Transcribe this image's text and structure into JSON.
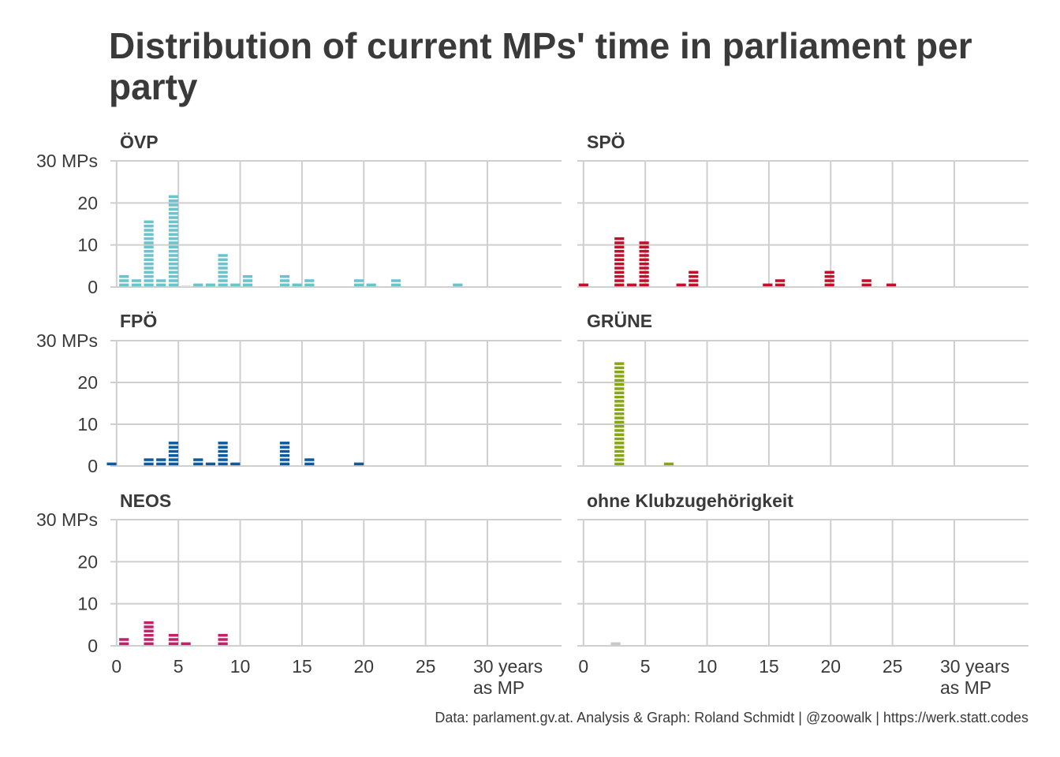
{
  "title": "Distribution of current MPs' time in parliament per party",
  "caption": "Data: parlament.gv.at. Analysis & Graph: Roland Schmidt | @zoowalk | https://werk.statt.codes",
  "chart_data": {
    "type": "bar",
    "xlabel_ticks": [
      "0",
      "5",
      "10",
      "15",
      "20",
      "25",
      "30 years\nas MP"
    ],
    "x_ticks": [
      0,
      5,
      10,
      15,
      20,
      25,
      30
    ],
    "y_ticks": [
      0,
      10,
      20,
      30
    ],
    "y_tick_labels": [
      "0",
      "10",
      "20",
      "30 MPs"
    ],
    "xlim": [
      -0.5,
      36
    ],
    "ylim": [
      0,
      30
    ],
    "grid": true,
    "panels": [
      {
        "name": "ÖVP",
        "color": "#6bc3cc",
        "bars": [
          {
            "x": 0.6,
            "n": 3
          },
          {
            "x": 1.6,
            "n": 2
          },
          {
            "x": 2.6,
            "n": 16
          },
          {
            "x": 3.6,
            "n": 2
          },
          {
            "x": 4.6,
            "n": 22
          },
          {
            "x": 5.6,
            "n": 0
          },
          {
            "x": 6.6,
            "n": 1
          },
          {
            "x": 7.6,
            "n": 1
          },
          {
            "x": 8.6,
            "n": 8
          },
          {
            "x": 9.6,
            "n": 1
          },
          {
            "x": 10.6,
            "n": 3
          },
          {
            "x": 13.6,
            "n": 3
          },
          {
            "x": 14.6,
            "n": 1
          },
          {
            "x": 15.6,
            "n": 2
          },
          {
            "x": 19.6,
            "n": 2
          },
          {
            "x": 20.6,
            "n": 1
          },
          {
            "x": 22.6,
            "n": 2
          },
          {
            "x": 27.6,
            "n": 1
          }
        ]
      },
      {
        "name": "SPÖ",
        "color": "#c0102a",
        "bars": [
          {
            "x": 0.0,
            "n": 1
          },
          {
            "x": 2.9,
            "n": 12
          },
          {
            "x": 3.9,
            "n": 1
          },
          {
            "x": 4.9,
            "n": 11
          },
          {
            "x": 7.9,
            "n": 1
          },
          {
            "x": 8.9,
            "n": 4
          },
          {
            "x": 14.9,
            "n": 1
          },
          {
            "x": 15.9,
            "n": 2
          },
          {
            "x": 19.9,
            "n": 4
          },
          {
            "x": 22.9,
            "n": 2
          },
          {
            "x": 24.9,
            "n": 1
          }
        ]
      },
      {
        "name": "FPÖ",
        "color": "#0e5a9e",
        "bars": [
          {
            "x": -0.4,
            "n": 1
          },
          {
            "x": 2.6,
            "n": 2
          },
          {
            "x": 3.6,
            "n": 2
          },
          {
            "x": 4.6,
            "n": 6
          },
          {
            "x": 6.6,
            "n": 2
          },
          {
            "x": 7.6,
            "n": 1
          },
          {
            "x": 8.6,
            "n": 6
          },
          {
            "x": 9.6,
            "n": 1
          },
          {
            "x": 13.6,
            "n": 6
          },
          {
            "x": 15.6,
            "n": 2
          },
          {
            "x": 19.6,
            "n": 1
          }
        ]
      },
      {
        "name": "GRÜNE",
        "color": "#86a617",
        "bars": [
          {
            "x": 2.9,
            "n": 25
          },
          {
            "x": 6.9,
            "n": 1
          }
        ]
      },
      {
        "name": "NEOS",
        "color": "#c6206b",
        "bars": [
          {
            "x": 0.6,
            "n": 2
          },
          {
            "x": 2.6,
            "n": 6
          },
          {
            "x": 4.6,
            "n": 3
          },
          {
            "x": 5.6,
            "n": 1
          },
          {
            "x": 8.6,
            "n": 3
          }
        ]
      },
      {
        "name": "ohne Klubzugehörigkeit",
        "color": "#c8c8c8",
        "bars": [
          {
            "x": 2.6,
            "n": 1
          }
        ]
      }
    ]
  }
}
